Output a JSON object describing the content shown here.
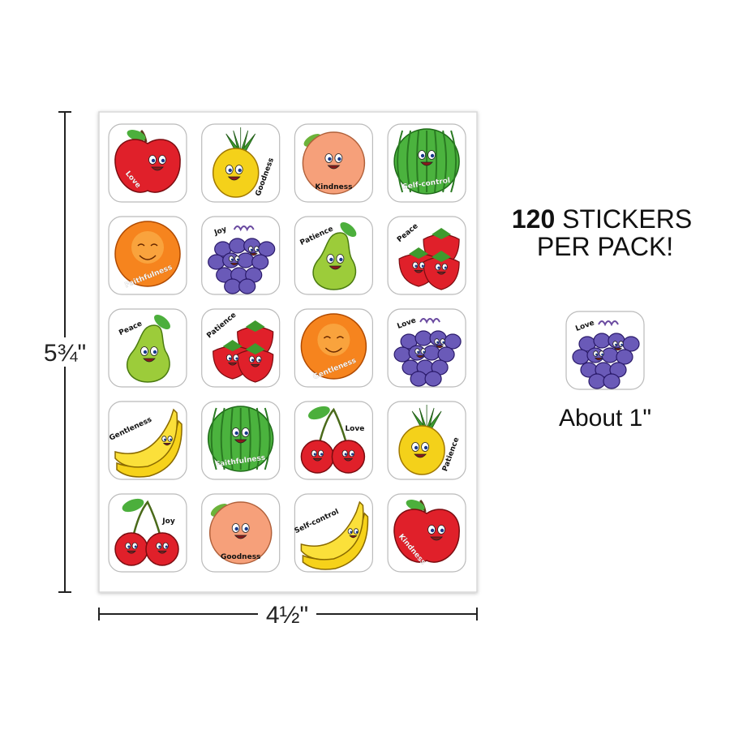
{
  "dimensions": {
    "height": "5¾\"",
    "width": "4½\""
  },
  "headline": {
    "count": "120",
    "line1": "STICKERS",
    "line2": "PER PACK!"
  },
  "sample": {
    "label": "Love",
    "caption": "About 1\""
  },
  "stickers": [
    "Love",
    "Goodness",
    "Kindness",
    "Self-control",
    "Faithfulness",
    "Joy",
    "Patience",
    "Peace",
    "Peace",
    "Patience",
    "Gentleness",
    "Love",
    "Gentleness",
    "Faithfulness",
    "Love",
    "Patience",
    "Joy",
    "Goodness",
    "Self-control",
    "Kindness"
  ]
}
